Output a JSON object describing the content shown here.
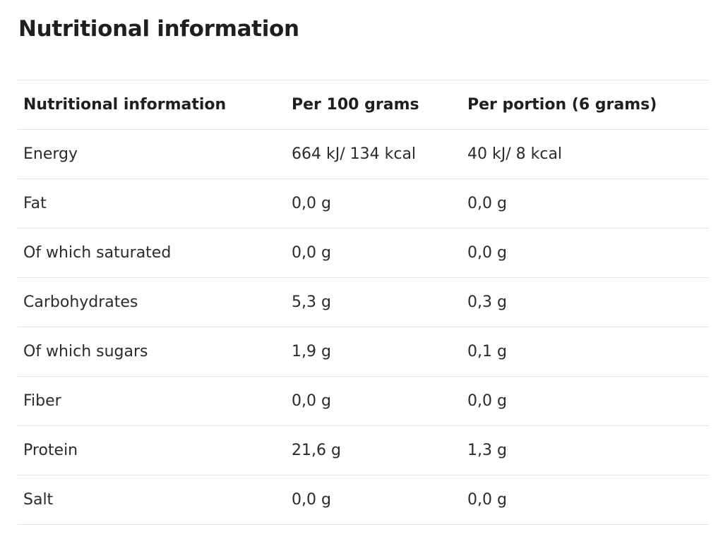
{
  "page": {
    "title": "Nutritional information"
  },
  "table": {
    "headers": [
      "Nutritional information",
      "Per 100 grams",
      "Per portion (6 grams)"
    ],
    "rows": [
      [
        "Energy",
        "664 kJ/ 134 kcal",
        "40 kJ/ 8 kcal"
      ],
      [
        "Fat",
        "0,0 g",
        "0,0 g"
      ],
      [
        "Of which saturated",
        "0,0 g",
        "0,0 g"
      ],
      [
        "Carbohydrates",
        "5,3 g",
        "0,3 g"
      ],
      [
        "Of which sugars",
        "1,9 g",
        "0,1 g"
      ],
      [
        "Fiber",
        "0,0 g",
        "0,0 g"
      ],
      [
        "Protein",
        "21,6 g",
        "1,3 g"
      ],
      [
        "Salt",
        "0,0 g",
        "0,0 g"
      ]
    ]
  }
}
